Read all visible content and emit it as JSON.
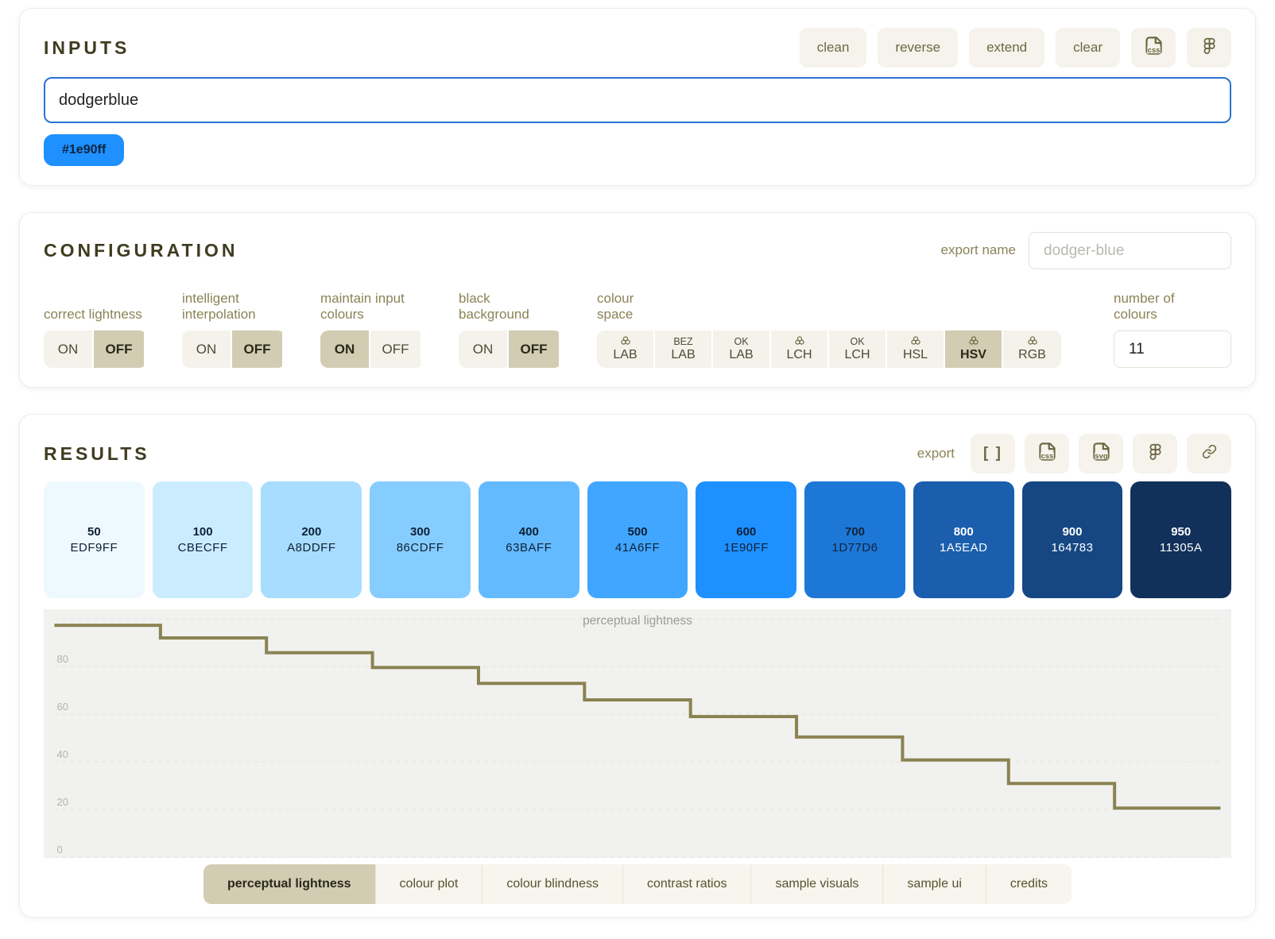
{
  "inputs": {
    "title": "INPUTS",
    "buttons": [
      {
        "name": "clean-button",
        "label": "clean"
      },
      {
        "name": "reverse-button",
        "label": "reverse"
      },
      {
        "name": "extend-button",
        "label": "extend"
      },
      {
        "name": "clear-button",
        "label": "clear"
      }
    ],
    "icon_buttons": [
      {
        "name": "copy-css-button",
        "icon": "css-file-icon",
        "file_label": "css"
      },
      {
        "name": "copy-figma-button",
        "icon": "figma-icon",
        "file_label": ""
      }
    ],
    "field_value": "dodgerblue",
    "chips": [
      {
        "label": "#1e90ff",
        "color": "#1e90ff"
      }
    ]
  },
  "configuration": {
    "title": "CONFIGURATION",
    "export_name": {
      "label": "export name",
      "placeholder": "dodger-blue"
    },
    "toggles": [
      {
        "name": "correct-lightness-toggle",
        "label": "correct lightness",
        "on_label": "ON",
        "off_label": "OFF",
        "active": "off"
      },
      {
        "name": "intelligent-interpolation-toggle",
        "label": "intelligent interpolation",
        "on_label": "ON",
        "off_label": "OFF",
        "active": "off"
      },
      {
        "name": "maintain-input-colours-toggle",
        "label": "maintain input colours",
        "on_label": "ON",
        "off_label": "OFF",
        "active": "on"
      },
      {
        "name": "black-background-toggle",
        "label": "black background",
        "on_label": "ON",
        "off_label": "OFF",
        "active": "off"
      }
    ],
    "colour_space": {
      "label": "colour space",
      "selected": "HSV",
      "options": [
        {
          "top_icon": "colour-space-icon",
          "top_text": "",
          "name": "LAB"
        },
        {
          "top_icon": "",
          "top_text": "BEZ",
          "name": "LAB"
        },
        {
          "top_icon": "",
          "top_text": "OK",
          "name": "LAB"
        },
        {
          "top_icon": "colour-space-icon",
          "top_text": "",
          "name": "LCH"
        },
        {
          "top_icon": "",
          "top_text": "OK",
          "name": "LCH"
        },
        {
          "top_icon": "colour-space-icon",
          "top_text": "",
          "name": "HSL"
        },
        {
          "top_icon": "colour-space-icon",
          "top_text": "",
          "name": "HSV"
        },
        {
          "top_icon": "colour-space-icon",
          "top_text": "",
          "name": "RGB"
        }
      ]
    },
    "number_of_colours": {
      "label": "number of colours",
      "value": "11"
    }
  },
  "results": {
    "title": "RESULTS",
    "export_label": "export",
    "export_buttons": [
      {
        "name": "export-json-button",
        "icon": "json-brackets-icon",
        "file_label": ""
      },
      {
        "name": "export-css-button",
        "icon": "css-file-icon",
        "file_label": "css"
      },
      {
        "name": "export-svg-button",
        "icon": "svg-file-icon",
        "file_label": "svg"
      },
      {
        "name": "export-figma-button",
        "icon": "figma-icon",
        "file_label": ""
      },
      {
        "name": "export-link-button",
        "icon": "link-icon",
        "file_label": ""
      }
    ],
    "swatches": [
      {
        "step": "50",
        "hex": "EDF9FF",
        "color": "#EDF9FF",
        "text_color": "#0e2036"
      },
      {
        "step": "100",
        "hex": "CBECFF",
        "color": "#CBECFF",
        "text_color": "#0e2036"
      },
      {
        "step": "200",
        "hex": "A8DDFF",
        "color": "#A8DDFF",
        "text_color": "#0e2036"
      },
      {
        "step": "300",
        "hex": "86CDFF",
        "color": "#86CDFF",
        "text_color": "#0e2036"
      },
      {
        "step": "400",
        "hex": "63BAFF",
        "color": "#63BAFF",
        "text_color": "#0e2036"
      },
      {
        "step": "500",
        "hex": "41A6FF",
        "color": "#41A6FF",
        "text_color": "#0e2036"
      },
      {
        "step": "600",
        "hex": "1E90FF",
        "color": "#1E90FF",
        "text_color": "#0e2036"
      },
      {
        "step": "700",
        "hex": "1D77D6",
        "color": "#1D77D6",
        "text_color": "#12233c"
      },
      {
        "step": "800",
        "hex": "1A5EAD",
        "color": "#1A5EAD",
        "text_color": "#ffffff"
      },
      {
        "step": "900",
        "hex": "164783",
        "color": "#164783",
        "text_color": "#ffffff"
      },
      {
        "step": "950",
        "hex": "11305A",
        "color": "#11305A",
        "text_color": "#ffffff"
      }
    ]
  },
  "chart_data": {
    "type": "line",
    "subtype": "step",
    "title": "perceptual lightness",
    "categories": [
      "50",
      "100",
      "200",
      "300",
      "400",
      "500",
      "600",
      "700",
      "800",
      "900",
      "950"
    ],
    "values": [
      97.3,
      92.0,
      85.8,
      79.6,
      72.9,
      66.0,
      59.0,
      50.4,
      40.8,
      30.9,
      20.6
    ],
    "ylim": [
      0,
      100
    ],
    "yticks": [
      0,
      20,
      40,
      60,
      80,
      100
    ],
    "ytick_labels_shown": [
      "0",
      "20",
      "40",
      "60",
      "80"
    ],
    "grid": "dashed-horizontal",
    "line_color": "#8a8352",
    "background": "#f1f1ef"
  },
  "tabs": [
    {
      "name": "tab-perceptual-lightness",
      "label": "perceptual lightness",
      "active": true
    },
    {
      "name": "tab-colour-plot",
      "label": "colour plot",
      "active": false
    },
    {
      "name": "tab-colour-blindness",
      "label": "colour blindness",
      "active": false
    },
    {
      "name": "tab-contrast-ratios",
      "label": "contrast ratios",
      "active": false
    },
    {
      "name": "tab-sample-visuals",
      "label": "sample visuals",
      "active": false
    },
    {
      "name": "tab-sample-ui",
      "label": "sample ui",
      "active": false
    },
    {
      "name": "tab-credits",
      "label": "credits",
      "active": false
    }
  ],
  "theme": {
    "accent_text": "#6e6842",
    "heading": "#3f3c20",
    "active_segment_bg": "#d2ccb3",
    "input_border_blue": "#2b72d4",
    "chart_line": "#8a8352",
    "chip_blue": "#1e90ff"
  }
}
